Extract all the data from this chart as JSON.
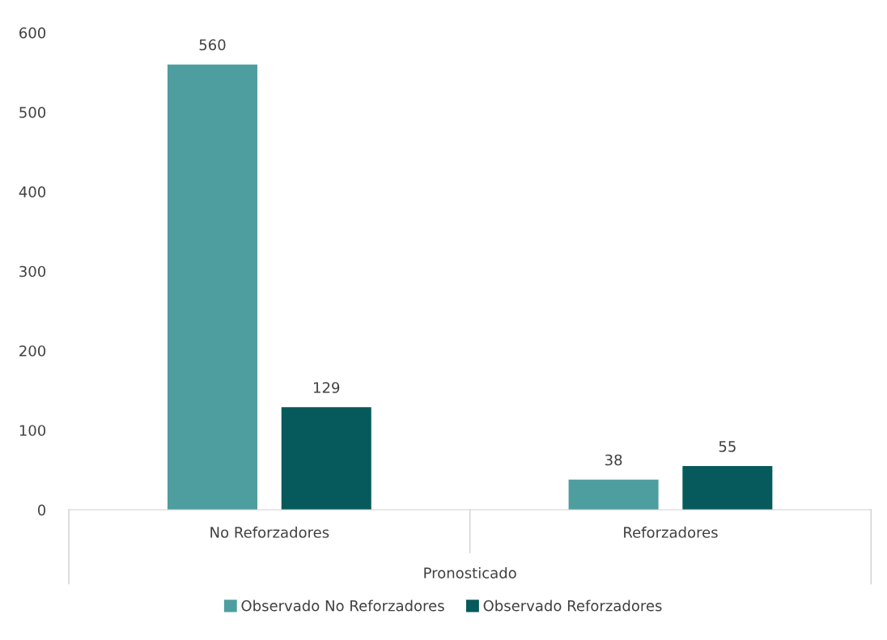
{
  "chart_data": {
    "type": "bar",
    "xlabel": "Pronosticado",
    "categories": [
      "No Reforzadores",
      "Reforzadores"
    ],
    "series": [
      {
        "name": "Observado No Reforzadores",
        "color": "#4e9ea0",
        "values": [
          560,
          38
        ]
      },
      {
        "name": "Observado Reforzadores",
        "color": "#065a5b",
        "values": [
          129,
          55
        ]
      }
    ],
    "ylim": [
      0,
      600
    ],
    "yticks": [
      0,
      100,
      200,
      300,
      400,
      500,
      600
    ],
    "data_labels": true,
    "grid": false,
    "legend": "bottom"
  }
}
